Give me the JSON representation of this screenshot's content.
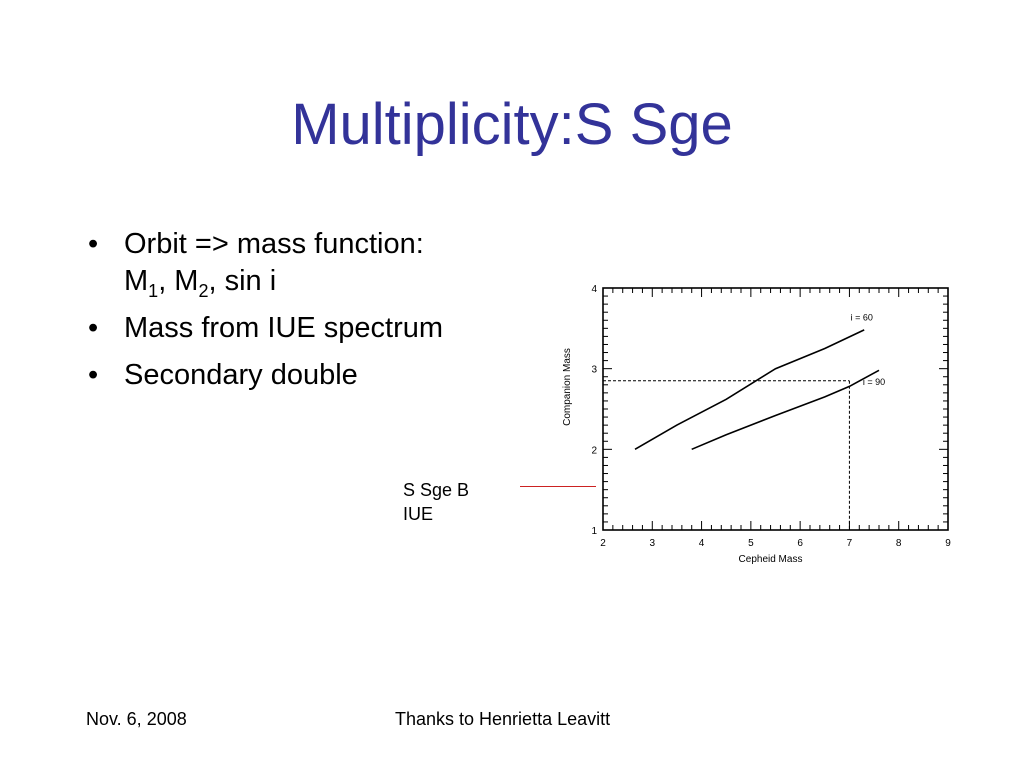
{
  "title": "Multiplicity:S Sge",
  "bullets": [
    {
      "parts": [
        "Orbit => mass function:",
        "M",
        "1",
        ", M",
        "2",
        ", sin i"
      ]
    },
    {
      "text": "Mass from IUE spectrum"
    },
    {
      "text": "Secondary double"
    }
  ],
  "bullet_glyph": "•",
  "callout": {
    "line1": "S Sge B",
    "line2": "IUE",
    "line_color": "#cc2222"
  },
  "footer": {
    "date": "Nov. 6, 2008",
    "center": "Thanks to Henrietta Leavitt"
  },
  "title_color": "#333399",
  "chart_data": {
    "type": "line",
    "xlabel": "Cepheid Mass",
    "ylabel": "Companion Mass",
    "xlim": [
      2,
      9
    ],
    "ylim": [
      1,
      4
    ],
    "xticks": [
      2,
      3,
      4,
      5,
      6,
      7,
      8,
      9
    ],
    "yticks": [
      1,
      2,
      3,
      4
    ],
    "series": [
      {
        "name": "i = 60",
        "x": [
          2.65,
          3.5,
          4.5,
          5.5,
          6.5,
          7.3
        ],
        "y": [
          2.0,
          2.3,
          2.62,
          3.0,
          3.25,
          3.48
        ]
      },
      {
        "name": "i = 90",
        "x": [
          3.8,
          4.5,
          5.5,
          6.5,
          7.0,
          7.6
        ],
        "y": [
          2.0,
          2.18,
          2.42,
          2.65,
          2.78,
          2.98
        ]
      }
    ],
    "reference": {
      "x": 7.0,
      "y": 2.85,
      "style": "dashed"
    },
    "grid": false
  }
}
